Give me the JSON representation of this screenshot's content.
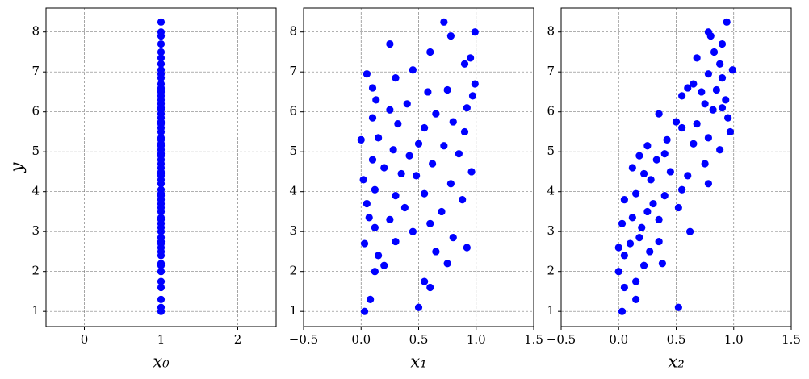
{
  "chart_data": [
    {
      "type": "scatter",
      "xlabel": "x₀",
      "ylabel": "y",
      "color": "#0000ff",
      "grid": true,
      "xlim": [
        -0.5,
        2.5
      ],
      "ylim": [
        0.62,
        8.6
      ],
      "xticks": [
        0,
        1,
        2
      ],
      "yticks": [
        1,
        2,
        3,
        4,
        5,
        6,
        7,
        8
      ],
      "x": [
        1,
        1,
        1,
        1,
        1,
        1,
        1,
        1,
        1,
        1,
        1,
        1,
        1,
        1,
        1,
        1,
        1,
        1,
        1,
        1,
        1,
        1,
        1,
        1,
        1,
        1,
        1,
        1,
        1,
        1,
        1,
        1,
        1,
        1,
        1,
        1,
        1,
        1,
        1,
        1,
        1,
        1,
        1,
        1,
        1,
        1,
        1,
        1,
        1,
        1,
        1,
        1,
        1,
        1,
        1,
        1,
        1,
        1,
        1,
        1,
        1,
        1,
        1,
        1,
        1,
        1
      ],
      "y": [
        1.0,
        1.1,
        1.3,
        1.6,
        1.75,
        2.0,
        2.15,
        2.2,
        2.4,
        2.5,
        2.6,
        2.7,
        2.75,
        2.85,
        3.0,
        3.1,
        3.2,
        3.3,
        3.35,
        3.5,
        3.6,
        3.7,
        3.8,
        3.9,
        3.95,
        4.05,
        4.2,
        4.3,
        4.4,
        4.45,
        4.5,
        4.6,
        4.7,
        4.8,
        4.9,
        4.95,
        5.05,
        5.15,
        5.2,
        5.3,
        5.35,
        5.5,
        5.6,
        5.7,
        5.75,
        5.85,
        5.95,
        6.05,
        6.1,
        6.2,
        6.3,
        6.4,
        6.5,
        6.55,
        6.6,
        6.7,
        6.85,
        6.95,
        7.05,
        7.2,
        7.35,
        7.5,
        7.7,
        7.9,
        8.0,
        8.25
      ]
    },
    {
      "type": "scatter",
      "xlabel": "x₁",
      "color": "#0000ff",
      "grid": true,
      "xlim": [
        -0.5,
        1.5
      ],
      "ylim": [
        0.62,
        8.6
      ],
      "xticks": [
        {
          "value": -0.5,
          "label": "−0.5"
        },
        {
          "value": 0,
          "label": "0.0"
        },
        0.5,
        {
          "value": 1,
          "label": "1.0"
        },
        1.5
      ],
      "yticks": [
        1,
        2,
        3,
        4,
        5,
        6,
        7,
        8
      ],
      "x": [
        0.03,
        0.5,
        0.08,
        0.6,
        0.55,
        0.12,
        0.2,
        0.75,
        0.15,
        0.65,
        0.92,
        0.03,
        0.3,
        0.8,
        0.45,
        0.12,
        0.6,
        0.25,
        0.07,
        0.7,
        0.38,
        0.05,
        0.88,
        0.3,
        0.55,
        0.12,
        0.78,
        0.02,
        0.48,
        0.35,
        0.96,
        0.2,
        0.62,
        0.1,
        0.42,
        0.85,
        0.28,
        0.72,
        0.5,
        0.0,
        0.15,
        0.9,
        0.55,
        0.32,
        0.8,
        0.1,
        0.65,
        0.25,
        0.92,
        0.4,
        0.13,
        0.97,
        0.58,
        0.75,
        0.1,
        0.99,
        0.3,
        0.05,
        0.45,
        0.9,
        0.95,
        0.6,
        0.25,
        0.78,
        0.99,
        0.72
      ],
      "y": [
        1.0,
        1.1,
        1.3,
        1.6,
        1.75,
        2.0,
        2.15,
        2.2,
        2.4,
        2.5,
        2.6,
        2.7,
        2.75,
        2.85,
        3.0,
        3.1,
        3.2,
        3.3,
        3.35,
        3.5,
        3.6,
        3.7,
        3.8,
        3.9,
        3.95,
        4.05,
        4.2,
        4.3,
        4.4,
        4.45,
        4.5,
        4.6,
        4.7,
        4.8,
        4.9,
        4.95,
        5.05,
        5.15,
        5.2,
        5.3,
        5.35,
        5.5,
        5.6,
        5.7,
        5.75,
        5.85,
        5.95,
        6.05,
        6.1,
        6.2,
        6.3,
        6.4,
        6.5,
        6.55,
        6.6,
        6.7,
        6.85,
        6.95,
        7.05,
        7.2,
        7.35,
        7.5,
        7.7,
        7.9,
        8.0,
        8.25
      ]
    },
    {
      "type": "scatter",
      "xlabel": "x₂",
      "color": "#0000ff",
      "grid": true,
      "xlim": [
        -0.5,
        1.5
      ],
      "ylim": [
        0.62,
        8.6
      ],
      "xticks": [
        {
          "value": -0.5,
          "label": "−0.5"
        },
        {
          "value": 0,
          "label": "0.0"
        },
        0.5,
        {
          "value": 1,
          "label": "1.0"
        },
        1.5
      ],
      "yticks": [
        1,
        2,
        3,
        4,
        5,
        6,
        7,
        8
      ],
      "x": [
        0.03,
        0.52,
        0.15,
        0.05,
        0.15,
        0.0,
        0.22,
        0.38,
        0.05,
        0.27,
        0.0,
        0.1,
        0.35,
        0.18,
        0.62,
        0.2,
        0.03,
        0.35,
        0.12,
        0.25,
        0.52,
        0.3,
        0.05,
        0.4,
        0.15,
        0.55,
        0.78,
        0.28,
        0.6,
        0.22,
        0.45,
        0.12,
        0.75,
        0.33,
        0.18,
        0.4,
        0.88,
        0.25,
        0.65,
        0.42,
        0.78,
        0.97,
        0.55,
        0.68,
        0.5,
        0.95,
        0.35,
        0.82,
        0.9,
        0.75,
        0.93,
        0.55,
        0.72,
        0.85,
        0.6,
        0.65,
        0.9,
        0.78,
        0.99,
        0.88,
        0.68,
        0.83,
        0.9,
        0.8,
        0.78,
        0.94
      ],
      "y": [
        1.0,
        1.1,
        1.3,
        1.6,
        1.75,
        2.0,
        2.15,
        2.2,
        2.4,
        2.5,
        2.6,
        2.7,
        2.75,
        2.85,
        3.0,
        3.1,
        3.2,
        3.3,
        3.35,
        3.5,
        3.6,
        3.7,
        3.8,
        3.9,
        3.95,
        4.05,
        4.2,
        4.3,
        4.4,
        4.45,
        4.5,
        4.6,
        4.7,
        4.8,
        4.9,
        4.95,
        5.05,
        5.15,
        5.2,
        5.3,
        5.35,
        5.5,
        5.6,
        5.7,
        5.75,
        5.85,
        5.95,
        6.05,
        6.1,
        6.2,
        6.3,
        6.4,
        6.5,
        6.55,
        6.6,
        6.7,
        6.85,
        6.95,
        7.05,
        7.2,
        7.35,
        7.5,
        7.7,
        7.9,
        8.0,
        8.25
      ]
    }
  ]
}
